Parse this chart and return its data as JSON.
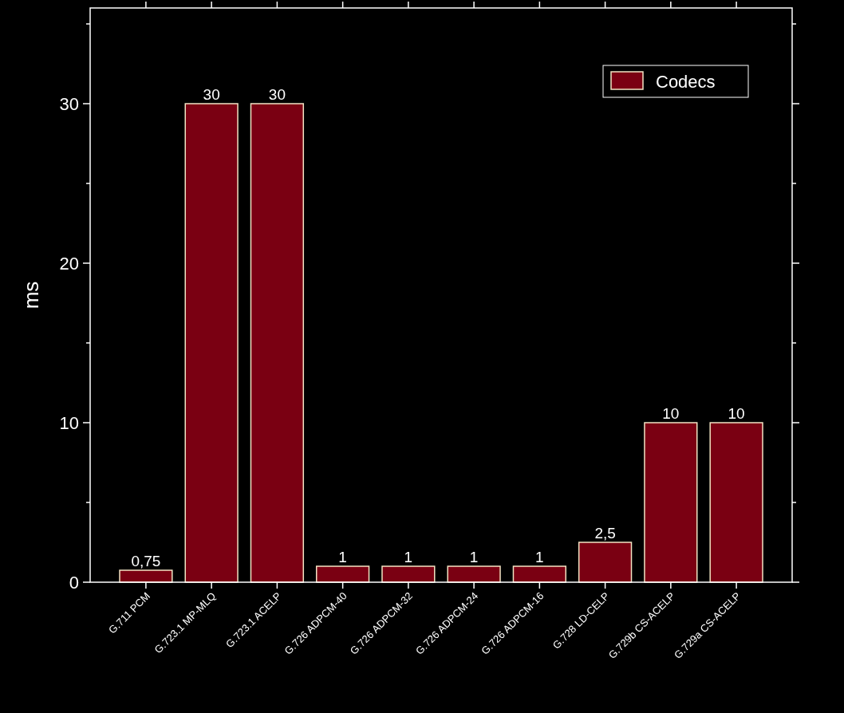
{
  "chart_data": {
    "type": "bar",
    "ylabel": "ms",
    "categories": [
      "G.711 PCM",
      "G.723.1 MP-MLQ",
      "G.723.1 ACELP",
      "G.726 ADPCM-40",
      "G.726 ADPCM-32",
      "G.726 ADPCM-24",
      "G.726 ADPCM-16",
      "G.728 LD-CELP",
      "G.729b CS-ACELP",
      "G.729a CS-ACELP"
    ],
    "series": [
      {
        "name": "Codecs",
        "color": "#7a0012",
        "values": [
          0.75,
          30,
          30,
          1,
          1,
          1,
          1,
          2.5,
          10,
          10
        ],
        "value_labels": [
          "0,75",
          "30",
          "30",
          "1",
          "1",
          "1",
          "1",
          "2,5",
          "10",
          "10"
        ]
      }
    ],
    "ylim": [
      0,
      36
    ],
    "yticks": [
      0,
      {
        "value": 5,
        "label": null
      },
      10,
      {
        "value": 15,
        "label": null
      },
      20,
      {
        "value": 25,
        "label": null
      },
      30,
      {
        "value": 35,
        "label": null
      }
    ],
    "grid": false,
    "legend": "top right"
  }
}
